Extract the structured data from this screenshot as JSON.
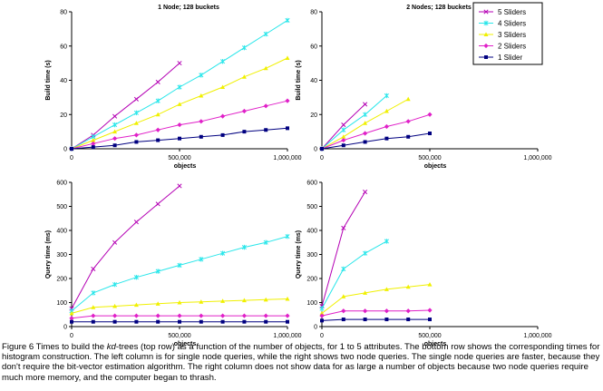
{
  "caption": {
    "prefix": "Figure 6  Times to build the ",
    "emph": "kd",
    "suffix": "-trees (top row) as a function of the number of objects, for 1 to 5 attributes.  The bottom row shows the corresponding times for histogram construction.  The left column is for single node queries, while the right shows two node queries.  The single node queries are faster, because they don't require the bit-vector estimation algorithm.  The right column does not show data for as large a number of objects because two node queries require much more memory, and the computer began to thrash."
  },
  "legend": {
    "entries": [
      {
        "name": "5 Sliders",
        "color": "#b400b4",
        "marker": "x"
      },
      {
        "name": "4 Sliders",
        "color": "#29e6ea",
        "marker": "asterisk"
      },
      {
        "name": "3 Sliders",
        "color": "#f0f000",
        "marker": "triangle"
      },
      {
        "name": "2 Sliders",
        "color": "#e020c8",
        "marker": "diamond"
      },
      {
        "name": "1 Slider",
        "color": "#000080",
        "marker": "square"
      }
    ]
  },
  "chart_data": [
    {
      "type": "line",
      "title": "1 Node; 128 buckets",
      "xlabel": "objects",
      "ylabel": "Build time (s)",
      "xlim": [
        0,
        1000000
      ],
      "ylim": [
        0,
        80
      ],
      "xticks": [
        0,
        500000,
        1000000
      ],
      "xtick_labels": [
        "0",
        "500,000",
        "1,000,000"
      ],
      "yticks": [
        0,
        20,
        40,
        60,
        80
      ],
      "grid": false,
      "series": [
        {
          "name": "5 Sliders",
          "x": [
            0,
            100000,
            200000,
            300000,
            400000,
            500000
          ],
          "y": [
            0,
            8,
            19,
            29,
            39,
            50
          ]
        },
        {
          "name": "4 Sliders",
          "x": [
            0,
            100000,
            200000,
            300000,
            400000,
            500000,
            600000,
            700000,
            800000,
            900000,
            1000000
          ],
          "y": [
            0,
            7,
            14,
            21,
            28,
            36,
            43,
            51,
            59,
            67,
            75
          ]
        },
        {
          "name": "3 Sliders",
          "x": [
            0,
            100000,
            200000,
            300000,
            400000,
            500000,
            600000,
            700000,
            800000,
            900000,
            1000000
          ],
          "y": [
            0,
            5,
            10,
            15,
            20,
            26,
            31,
            36,
            42,
            47,
            53
          ]
        },
        {
          "name": "2 Sliders",
          "x": [
            0,
            100000,
            200000,
            300000,
            400000,
            500000,
            600000,
            700000,
            800000,
            900000,
            1000000
          ],
          "y": [
            0,
            3,
            6,
            8,
            11,
            14,
            16,
            19,
            22,
            25,
            28
          ]
        },
        {
          "name": "1 Slider",
          "x": [
            0,
            100000,
            200000,
            300000,
            400000,
            500000,
            600000,
            700000,
            800000,
            900000,
            1000000
          ],
          "y": [
            0,
            1,
            2,
            4,
            5,
            6,
            7,
            8,
            10,
            11,
            12
          ]
        }
      ]
    },
    {
      "type": "line",
      "title": "2 Nodes; 128 buckets",
      "xlabel": "objects",
      "ylabel": "Build time (s)",
      "xlim": [
        0,
        1000000
      ],
      "ylim": [
        0,
        80
      ],
      "xticks": [
        0,
        500000,
        1000000
      ],
      "xtick_labels": [
        "0",
        "500,000",
        "1,000,000"
      ],
      "yticks": [
        0,
        20,
        40,
        60,
        80
      ],
      "grid": false,
      "series": [
        {
          "name": "5 Sliders",
          "x": [
            0,
            100000,
            200000
          ],
          "y": [
            0,
            14,
            26
          ]
        },
        {
          "name": "4 Sliders",
          "x": [
            0,
            100000,
            200000,
            300000
          ],
          "y": [
            0,
            11,
            20,
            31
          ]
        },
        {
          "name": "3 Sliders",
          "x": [
            0,
            100000,
            200000,
            300000,
            400000
          ],
          "y": [
            0,
            7,
            15,
            22,
            29
          ]
        },
        {
          "name": "2 Sliders",
          "x": [
            0,
            100000,
            200000,
            300000,
            400000,
            500000
          ],
          "y": [
            0,
            5,
            9,
            13,
            16,
            20
          ]
        },
        {
          "name": "1 Slider",
          "x": [
            0,
            100000,
            200000,
            300000,
            400000,
            500000
          ],
          "y": [
            0,
            2,
            4,
            6,
            7,
            9
          ]
        }
      ]
    },
    {
      "type": "line",
      "title": "",
      "xlabel": "objects",
      "ylabel": "Query time (ms)",
      "xlim": [
        0,
        1000000
      ],
      "ylim": [
        0,
        600
      ],
      "xticks": [
        0,
        500000,
        1000000
      ],
      "xtick_labels": [
        "0",
        "500,000",
        "1,000,000"
      ],
      "yticks": [
        0,
        100,
        200,
        300,
        400,
        500,
        600
      ],
      "grid": false,
      "series": [
        {
          "name": "5 Sliders",
          "x": [
            0,
            100000,
            200000,
            300000,
            400000,
            500000
          ],
          "y": [
            75,
            240,
            350,
            435,
            510,
            585
          ]
        },
        {
          "name": "4 Sliders",
          "x": [
            0,
            100000,
            200000,
            300000,
            400000,
            500000,
            600000,
            700000,
            800000,
            900000,
            1000000
          ],
          "y": [
            65,
            140,
            175,
            205,
            230,
            255,
            280,
            305,
            330,
            350,
            375
          ]
        },
        {
          "name": "3 Sliders",
          "x": [
            0,
            100000,
            200000,
            300000,
            400000,
            500000,
            600000,
            700000,
            800000,
            900000,
            1000000
          ],
          "y": [
            55,
            80,
            85,
            90,
            95,
            100,
            103,
            106,
            109,
            112,
            115
          ]
        },
        {
          "name": "2 Sliders",
          "x": [
            0,
            100000,
            200000,
            300000,
            400000,
            500000,
            600000,
            700000,
            800000,
            900000,
            1000000
          ],
          "y": [
            35,
            45,
            45,
            45,
            45,
            45,
            45,
            45,
            45,
            45,
            45
          ]
        },
        {
          "name": "1 Slider",
          "x": [
            0,
            100000,
            200000,
            300000,
            400000,
            500000,
            600000,
            700000,
            800000,
            900000,
            1000000
          ],
          "y": [
            20,
            20,
            20,
            20,
            20,
            20,
            20,
            20,
            20,
            20,
            20
          ]
        }
      ]
    },
    {
      "type": "line",
      "title": "",
      "xlabel": "objects",
      "ylabel": "Query time (ms)",
      "xlim": [
        0,
        1000000
      ],
      "ylim": [
        0,
        600
      ],
      "xticks": [
        0,
        500000,
        1000000
      ],
      "xtick_labels": [
        "0",
        "500,000",
        "1,000,000"
      ],
      "yticks": [
        0,
        100,
        200,
        300,
        400,
        500,
        600
      ],
      "grid": false,
      "series": [
        {
          "name": "5 Sliders",
          "x": [
            0,
            100000,
            200000
          ],
          "y": [
            85,
            410,
            560
          ]
        },
        {
          "name": "4 Sliders",
          "x": [
            0,
            100000,
            200000,
            300000
          ],
          "y": [
            75,
            240,
            305,
            355
          ]
        },
        {
          "name": "3 Sliders",
          "x": [
            0,
            100000,
            200000,
            300000,
            400000,
            500000
          ],
          "y": [
            55,
            125,
            140,
            155,
            165,
            175
          ]
        },
        {
          "name": "2 Sliders",
          "x": [
            0,
            100000,
            200000,
            300000,
            400000,
            500000
          ],
          "y": [
            45,
            65,
            65,
            65,
            65,
            68
          ]
        },
        {
          "name": "1 Slider",
          "x": [
            0,
            100000,
            200000,
            300000,
            400000,
            500000
          ],
          "y": [
            25,
            30,
            30,
            30,
            30,
            30
          ]
        }
      ]
    }
  ]
}
